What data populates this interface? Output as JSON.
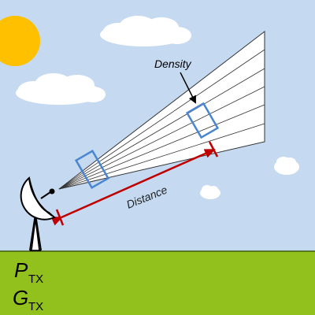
{
  "labels": {
    "density": "Density",
    "distance": "Distance",
    "power_symbol": "P",
    "power_subscript": "TX",
    "gain_symbol": "G",
    "gain_subscript": "TX"
  },
  "colors": {
    "sky": "#c5d9f1",
    "ground": "#92c11e",
    "sun": "#ffc000",
    "beam_fill": "#ffffff",
    "beam_line": "#333333",
    "box_stroke": "#4a86d0",
    "arrow": "#c00000"
  },
  "icons": {
    "sun": "sun-icon",
    "clouds": "cloud-icon",
    "antenna": "dish-antenna-icon"
  }
}
